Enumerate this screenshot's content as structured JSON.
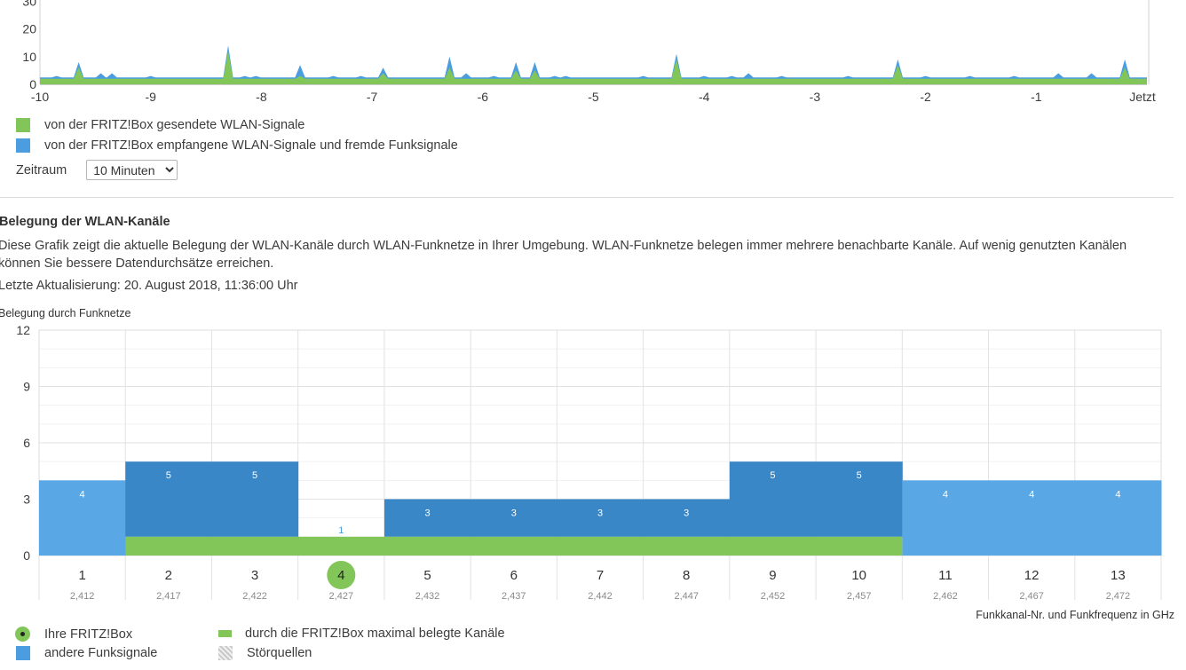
{
  "colors": {
    "sent": "#82c65a",
    "received": "#4b9de0",
    "own_channels": "#82c65a",
    "other_light": "#5aa7e6",
    "other_dark": "#3a87c8"
  },
  "signal_legend": {
    "sent": "von der FRITZ!Box gesendete WLAN-Signale",
    "received": "von der FRITZ!Box empfangene WLAN-Signale und fremde Funksignale"
  },
  "zeitraum": {
    "label": "Zeitraum",
    "selected": "10 Minuten"
  },
  "section": {
    "heading": "Belegung der WLAN-Kanäle",
    "description": "Diese Grafik zeigt die aktuelle Belegung der WLAN-Kanäle durch WLAN-Funknetze in Ihrer Umgebung. WLAN-Funknetze belegen immer mehrere benachbarte Kanäle. Auf wenig genutzten Kanälen können Sie bessere Datendurchsätze erreichen.",
    "last_update": "Letzte Aktualisierung: 20. August 2018, 11:36:00 Uhr"
  },
  "bottom_legend": {
    "own_box": "Ihre FRITZ!Box",
    "max_channels": "durch die FRITZ!Box maximal belegte Kanäle",
    "other_signals": "andere Funksignale",
    "interference": "Störquellen"
  },
  "chart_data": [
    {
      "type": "area",
      "x_ticks": [
        "-10",
        "-9",
        "-8",
        "-7",
        "-6",
        "-5",
        "-4",
        "-3",
        "-2",
        "-1",
        "Jetzt"
      ],
      "y_ticks": [
        0,
        10,
        20,
        30
      ],
      "ylim": [
        0,
        33
      ],
      "xlim": [
        -10,
        0
      ],
      "series": [
        {
          "name": "von der FRITZ!Box gesendete WLAN-Signale",
          "baseline": 2,
          "spikes": [
            [
              -9.65,
              6
            ],
            [
              -8.3,
              12
            ],
            [
              -7.65,
              3
            ],
            [
              -6.9,
              4
            ],
            [
              -6.3,
              6
            ],
            [
              -5.7,
              5
            ],
            [
              -5.53,
              5
            ],
            [
              -4.25,
              9
            ],
            [
              -2.25,
              7
            ],
            [
              -0.2,
              6
            ]
          ]
        },
        {
          "name": "von der FRITZ!Box empfangene WLAN-Signale und fremde Funksignale",
          "baseline": 2.5,
          "spikes": [
            [
              -9.85,
              3
            ],
            [
              -9.65,
              8
            ],
            [
              -9.45,
              4
            ],
            [
              -9.35,
              4
            ],
            [
              -9.0,
              3
            ],
            [
              -8.3,
              14
            ],
            [
              -8.15,
              3
            ],
            [
              -8.05,
              3
            ],
            [
              -7.65,
              7
            ],
            [
              -7.35,
              3
            ],
            [
              -7.1,
              3
            ],
            [
              -6.9,
              6
            ],
            [
              -6.3,
              10
            ],
            [
              -6.15,
              4
            ],
            [
              -5.9,
              3
            ],
            [
              -5.7,
              8
            ],
            [
              -5.53,
              8
            ],
            [
              -5.35,
              3
            ],
            [
              -5.25,
              3
            ],
            [
              -4.55,
              3
            ],
            [
              -4.25,
              11
            ],
            [
              -4.0,
              3
            ],
            [
              -3.75,
              3
            ],
            [
              -3.6,
              4
            ],
            [
              -3.3,
              3
            ],
            [
              -2.7,
              3
            ],
            [
              -2.25,
              9
            ],
            [
              -2.0,
              3
            ],
            [
              -1.6,
              3
            ],
            [
              -1.2,
              3
            ],
            [
              -0.8,
              4
            ],
            [
              -0.5,
              4
            ],
            [
              -0.2,
              9
            ]
          ]
        }
      ]
    },
    {
      "type": "bar",
      "title": "Belegung durch Funknetze",
      "xlabel": "Funkkanal-Nr. und Funkfrequenz in GHz",
      "ylim": [
        0,
        12
      ],
      "y_ticks": [
        0,
        3,
        6,
        9,
        12
      ],
      "categories": [
        "1",
        "2",
        "3",
        "4",
        "5",
        "6",
        "7",
        "8",
        "9",
        "10",
        "11",
        "12",
        "13"
      ],
      "frequencies": [
        "2,412",
        "2,417",
        "2,422",
        "2,427",
        "2,432",
        "2,437",
        "2,442",
        "2,447",
        "2,452",
        "2,457",
        "2,462",
        "2,467",
        "2,472"
      ],
      "own_channel": "4",
      "own_channel_range": [
        "2",
        "10"
      ],
      "own_value": 1,
      "series": [
        {
          "name": "andere Funksignale",
          "values": [
            4,
            5,
            5,
            1,
            3,
            3,
            3,
            3,
            5,
            5,
            4,
            4,
            4
          ],
          "labels": [
            "4",
            "5",
            "5",
            "1",
            "3",
            "3",
            "3",
            "3",
            "5",
            "5",
            "4",
            "4",
            "4"
          ]
        }
      ]
    }
  ]
}
